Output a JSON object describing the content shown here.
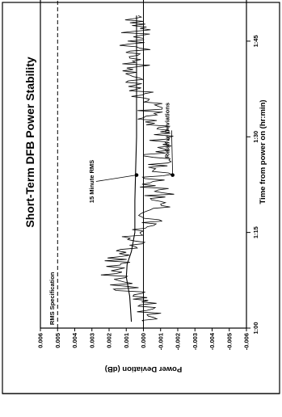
{
  "chart_data": {
    "type": "line",
    "title": "Short-Term DFB Power Stability",
    "xlabel": "Time from power on (hr:min)",
    "ylabel": "Power Deviation (dB)",
    "xlim": [
      60,
      115
    ],
    "ylim": [
      -0.006,
      0.006
    ],
    "x_ticks": [
      {
        "value": 60,
        "label": "1:00"
      },
      {
        "value": 75,
        "label": "1:15"
      },
      {
        "value": 90,
        "label": "1:30"
      },
      {
        "value": 105,
        "label": "1:45"
      }
    ],
    "y_ticks": [
      {
        "value": 0.006,
        "label": "0.006"
      },
      {
        "value": 0.005,
        "label": "0.005"
      },
      {
        "value": 0.004,
        "label": "0.004"
      },
      {
        "value": 0.003,
        "label": "0.003"
      },
      {
        "value": 0.002,
        "label": "0.002"
      },
      {
        "value": 0.001,
        "label": "0.001"
      },
      {
        "value": 0.0,
        "label": "0.000"
      },
      {
        "value": -0.001,
        "label": "-0.001"
      },
      {
        "value": -0.002,
        "label": "-0.002"
      },
      {
        "value": -0.003,
        "label": "-0.003"
      },
      {
        "value": -0.004,
        "label": "-0.004"
      },
      {
        "value": -0.005,
        "label": "-0.005"
      },
      {
        "value": -0.006,
        "label": "-0.006"
      }
    ],
    "grid": false,
    "legend": "none",
    "series": [
      {
        "name": "RMS Specification",
        "style": "dashed",
        "x": [
          60,
          115
        ],
        "y": [
          0.005,
          0.005
        ]
      },
      {
        "name": "15 Minute RMS",
        "style": "solid",
        "x": [
          61,
          65,
          68,
          70,
          72,
          75,
          80,
          85,
          90,
          95,
          100,
          105,
          109
        ],
        "y": [
          0.0007,
          0.0008,
          0.001,
          0.00095,
          0.0007,
          0.0005,
          0.0005,
          0.00045,
          0.0004,
          0.0004,
          0.0004,
          0.0004,
          0.0004
        ]
      },
      {
        "name": "Relative Deviations",
        "style": "solid",
        "x": [
          61,
          63,
          65,
          67,
          69,
          71,
          73,
          75,
          77,
          79,
          81,
          83,
          85,
          87,
          89,
          91,
          93,
          95,
          97,
          99,
          101,
          103,
          105,
          107,
          109
        ],
        "y": [
          0.0,
          -0.0004,
          0.0005,
          0.0012,
          0.0018,
          0.0014,
          0.0009,
          0.0002,
          -0.0005,
          -0.0007,
          -0.0009,
          -0.0005,
          -0.001,
          -0.0006,
          -0.0009,
          -0.0008,
          -0.0004,
          -0.0003,
          0.0001,
          0.0002,
          0.0004,
          0.0003,
          0.0006,
          0.0004,
          0.0003
        ]
      }
    ],
    "annotations": [
      {
        "text": "RMS Specification",
        "x": 60.5,
        "y": 0.0052
      },
      {
        "text": "15 Minute RMS",
        "x": 83,
        "y": 0.0029,
        "arrow_to": [
          84,
          0.0004
        ]
      },
      {
        "text": "Relative Deviations",
        "x": 91,
        "y": -0.0015,
        "arrow_to": [
          84,
          -0.0017
        ]
      }
    ]
  }
}
